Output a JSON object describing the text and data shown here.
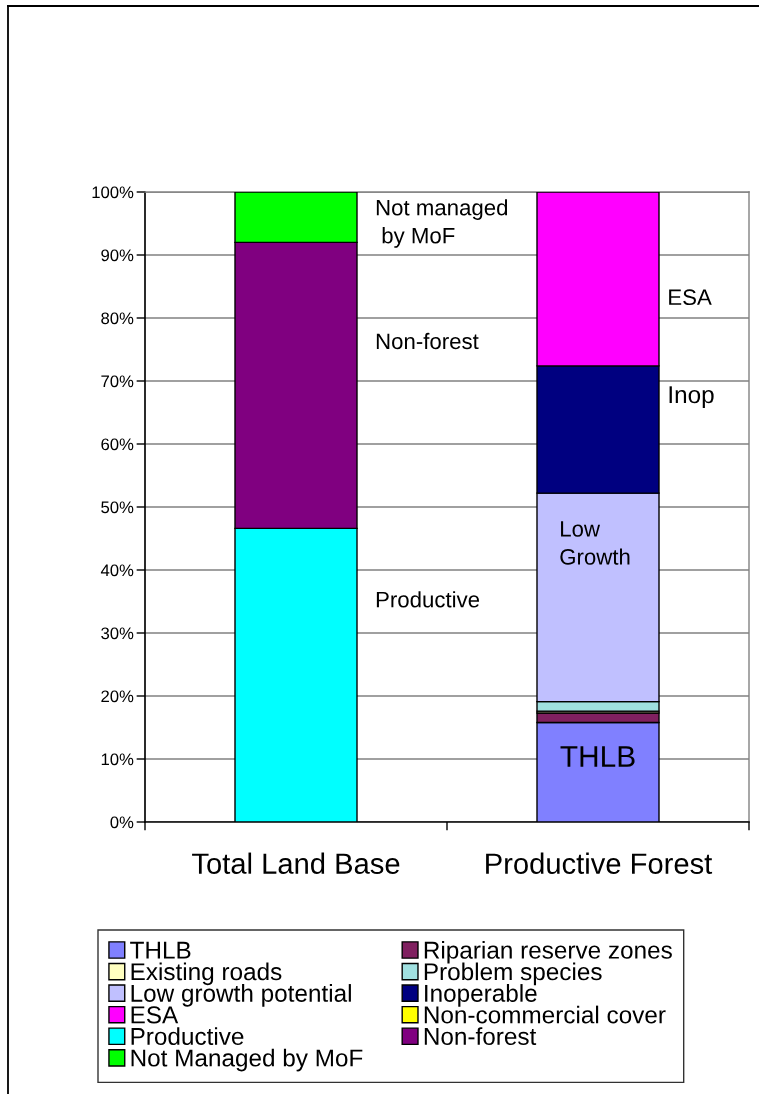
{
  "chart_data": {
    "type": "bar",
    "stacked": true,
    "categories": [
      "Total Land Base",
      "Productive Forest"
    ],
    "series": [
      {
        "name": "THLB",
        "color": "#8080ff",
        "values": [
          null,
          15.8
        ]
      },
      {
        "name": "Riparian reserve zones",
        "color": "#802060",
        "values": [
          null,
          1.5
        ]
      },
      {
        "name": "Existing roads",
        "color": "#ffffc0",
        "values": [
          null,
          0.3
        ]
      },
      {
        "name": "Problem species",
        "color": "#a0e0e0",
        "values": [
          null,
          1.5
        ]
      },
      {
        "name": "Low growth potential",
        "color": "#c0c0ff",
        "values": [
          null,
          33.1
        ]
      },
      {
        "name": "Inoperable",
        "color": "#000080",
        "values": [
          null,
          20.2
        ]
      },
      {
        "name": "ESA",
        "color": "#ff00ff",
        "values": [
          null,
          27.6
        ]
      },
      {
        "name": "Non-commercial cover",
        "color": "#ffff00",
        "values": [
          null,
          null
        ]
      },
      {
        "name": "Productive",
        "color": "#00ffff",
        "values": [
          46.6,
          null
        ]
      },
      {
        "name": "Non-forest",
        "color": "#800080",
        "values": [
          45.4,
          null
        ]
      },
      {
        "name": "Not Managed by MoF",
        "color": "#00ff00",
        "values": [
          8.0,
          null
        ]
      }
    ],
    "ylim": [
      0,
      100
    ],
    "yticks": [
      {
        "value": 0,
        "label": "0%"
      },
      {
        "value": 10,
        "label": "10%"
      },
      {
        "value": 20,
        "label": "20%"
      },
      {
        "value": 30,
        "label": "30%"
      },
      {
        "value": 40,
        "label": "40%"
      },
      {
        "value": 50,
        "label": "50%"
      },
      {
        "value": 60,
        "label": "60%"
      },
      {
        "value": 70,
        "label": "70%"
      },
      {
        "value": 80,
        "label": "80%"
      },
      {
        "value": 90,
        "label": "90%"
      },
      {
        "value": 100,
        "label": "100%"
      }
    ],
    "grid": "y",
    "legend": "bottom",
    "annotations": [
      "Not managed\n by MoF",
      "Non-forest",
      "Productive",
      "ESA",
      "Inop",
      "Low\nGrowth",
      "THLB"
    ]
  }
}
